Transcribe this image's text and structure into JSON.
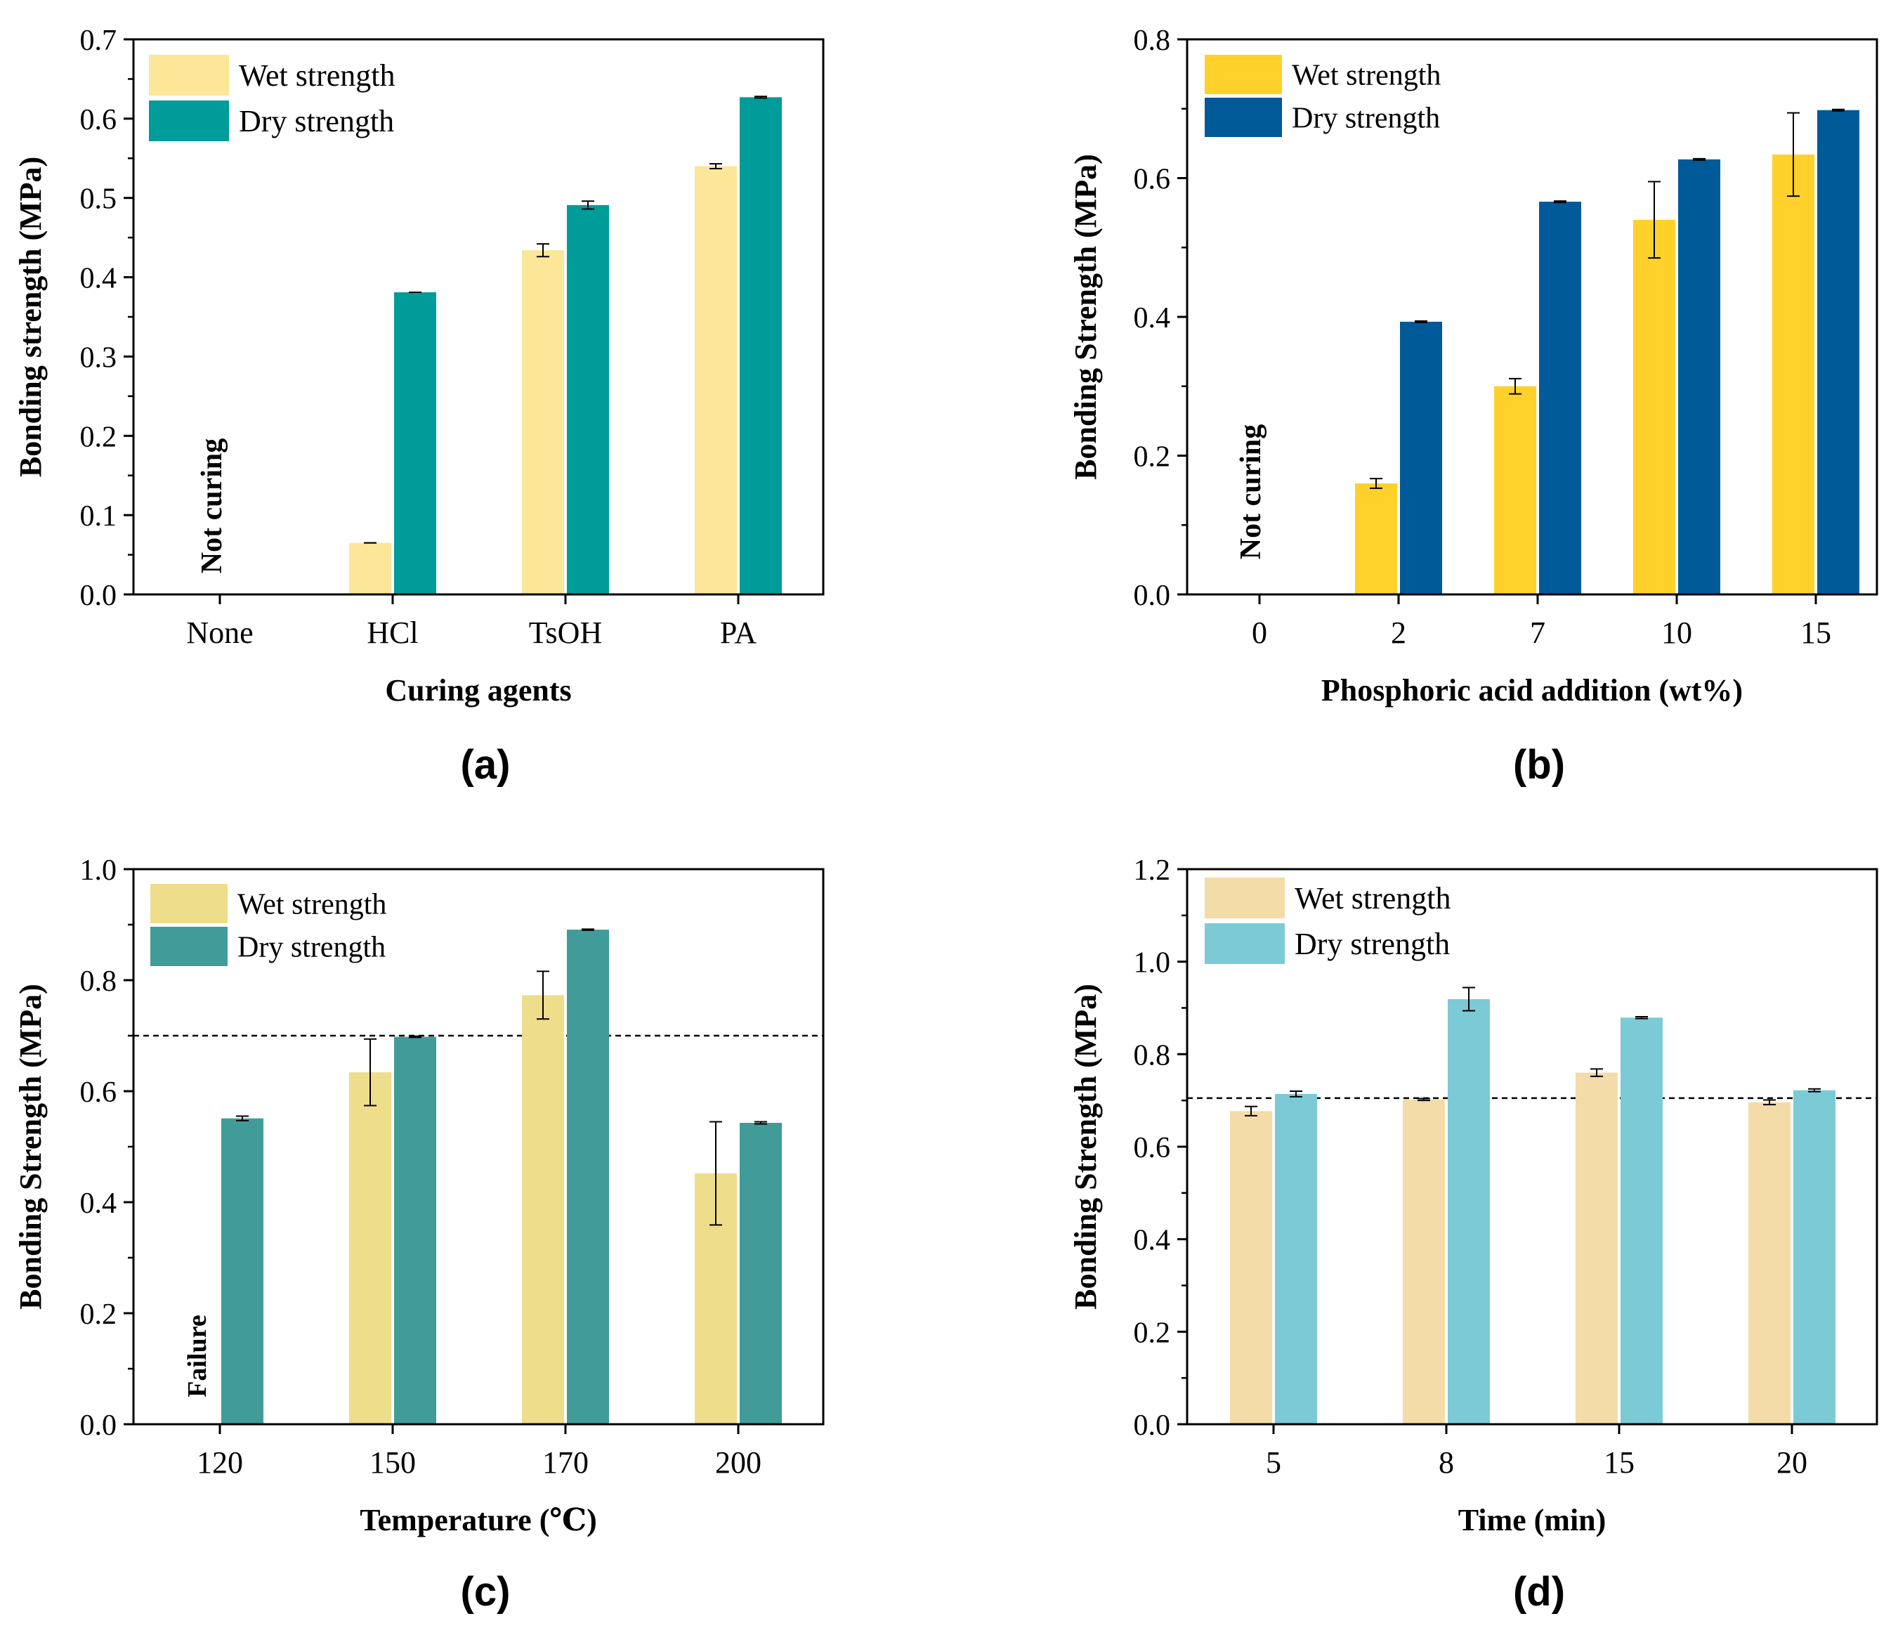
{
  "colors": {
    "a_wet": "#FCE697",
    "a_dry": "#009C99",
    "b_wet": "#FFD12A",
    "b_dry": "#005A98",
    "c_wet": "#EEDE8C",
    "c_dry": "#419C99",
    "d_wet": "#F3DCA8",
    "d_dry": "#7CCAD6"
  },
  "chart_data": [
    {
      "id": "a",
      "type": "bar",
      "panel_label": "(a)",
      "xlabel": "Curing agents",
      "ylabel": "Bonding strength (MPa)",
      "categories": [
        "None",
        "HCl",
        "TsOH",
        "PA"
      ],
      "ylim": [
        0,
        0.7
      ],
      "yticks": [
        "0.0",
        "0.1",
        "0.2",
        "0.3",
        "0.4",
        "0.5",
        "0.6",
        "0.7"
      ],
      "series": [
        {
          "name": "Wet strength",
          "values": [
            null,
            0.065,
            0.434,
            0.54
          ],
          "errors": [
            null,
            0.0,
            0.008,
            0.003
          ]
        },
        {
          "name": "Dry strength",
          "values": [
            null,
            0.381,
            0.491,
            0.627
          ],
          "errors": [
            null,
            0.0,
            0.005,
            0.001
          ]
        }
      ],
      "annotation": {
        "text": "Not curing",
        "category_index": 0
      },
      "reference_line": null
    },
    {
      "id": "b",
      "type": "bar",
      "panel_label": "(b)",
      "xlabel": "Phosphoric acid addition (wt%)",
      "ylabel": "Bonding Strength (MPa)",
      "categories": [
        "0",
        "2",
        "7",
        "10",
        "15"
      ],
      "ylim": [
        0,
        0.8
      ],
      "yticks": [
        "0.0",
        "0.2",
        "0.4",
        "0.6",
        "0.8"
      ],
      "series": [
        {
          "name": "Wet strength",
          "values": [
            null,
            0.16,
            0.3,
            0.54,
            0.634
          ],
          "errors": [
            null,
            0.007,
            0.011,
            0.055,
            0.06
          ]
        },
        {
          "name": "Dry strength",
          "values": [
            null,
            0.393,
            0.566,
            0.627,
            0.698
          ],
          "errors": [
            null,
            0.001,
            0.001,
            0.001,
            0.001
          ]
        }
      ],
      "annotation": {
        "text": "Not curing",
        "category_index": 0
      },
      "reference_line": null
    },
    {
      "id": "c",
      "type": "bar",
      "panel_label": "(c)",
      "xlabel": "Temperature  (℃)",
      "ylabel": "Bonding Strength (MPa)",
      "categories": [
        "120",
        "150",
        "170",
        "200"
      ],
      "ylim": [
        0,
        1.0
      ],
      "yticks": [
        "0.0",
        "0.2",
        "0.4",
        "0.6",
        "0.8",
        "1.0"
      ],
      "series": [
        {
          "name": "Wet strength",
          "values": [
            null,
            0.634,
            0.773,
            0.452
          ],
          "errors": [
            null,
            0.06,
            0.043,
            0.093
          ]
        },
        {
          "name": "Dry strength",
          "values": [
            0.551,
            0.698,
            0.891,
            0.543
          ],
          "errors": [
            0.004,
            0.001,
            0.001,
            0.002
          ]
        }
      ],
      "annotation": {
        "text": "Failure",
        "category_index": 0
      },
      "reference_line": 0.7
    },
    {
      "id": "d",
      "type": "bar",
      "panel_label": "(d)",
      "xlabel": "Time  (min)",
      "ylabel": "Bonding Strength (MPa)",
      "categories": [
        "5",
        "8",
        "15",
        "20"
      ],
      "ylim": [
        0,
        1.2
      ],
      "yticks": [
        "0.0",
        "0.2",
        "0.4",
        "0.6",
        "0.8",
        "1.0",
        "1.2"
      ],
      "series": [
        {
          "name": "Wet strength",
          "values": [
            0.677,
            0.702,
            0.76,
            0.696
          ],
          "errors": [
            0.01,
            0.002,
            0.008,
            0.005
          ]
        },
        {
          "name": "Dry strength",
          "values": [
            0.714,
            0.919,
            0.879,
            0.722
          ],
          "errors": [
            0.006,
            0.025,
            0.002,
            0.003
          ]
        }
      ],
      "annotation": null,
      "reference_line": 0.705
    }
  ]
}
